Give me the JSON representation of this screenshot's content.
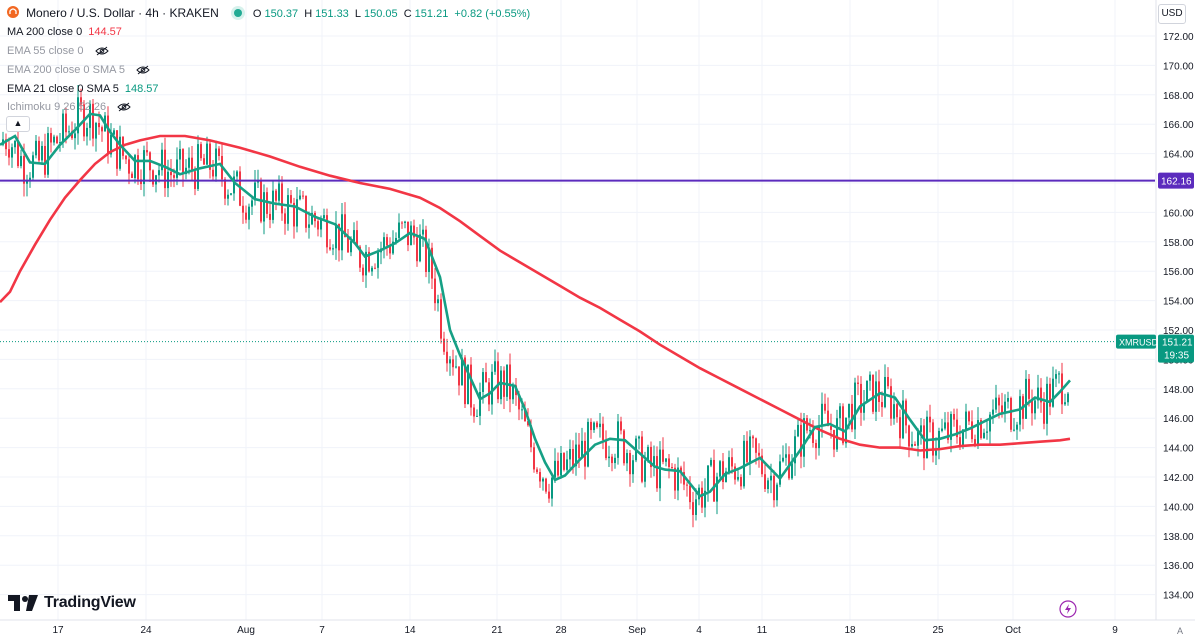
{
  "header": {
    "symbol_title": "Monero / U.S. Dollar · 4h · KRAKEN",
    "ohlc": {
      "o_label": "O",
      "o": "150.37",
      "h_label": "H",
      "h": "151.33",
      "l_label": "L",
      "l": "150.05",
      "c_label": "C",
      "c": "151.21",
      "change": "+0.82 (+0.55%)"
    },
    "currency_button": "USD"
  },
  "indicators": [
    {
      "label": "MA 200 close 0",
      "value": "144.57",
      "hidden": false
    },
    {
      "label": "EMA 55 close 0",
      "value": "",
      "hidden": true
    },
    {
      "label": "EMA 200 close 0 SMA 5",
      "value": "",
      "hidden": true
    },
    {
      "label": "EMA 21 close 0 SMA 5",
      "value": "148.57",
      "hidden": false
    },
    {
      "label": "Ichimoku 9 26 52 26",
      "value": "",
      "hidden": true
    }
  ],
  "branding": {
    "logo_text": "TradingView"
  },
  "auto_label": "A",
  "colors": {
    "up": "#089981",
    "down": "#f23645",
    "ma200": "#f23645",
    "ema21": "#16a085",
    "hline": "#5b2bbd",
    "grid": "#f0f3fa"
  },
  "chart_data": {
    "type": "candlestick",
    "symbol": "XMRUSD",
    "interval": "4h",
    "exchange": "KRAKEN",
    "ylim": [
      133,
      173
    ],
    "y_ticks": [
      "172.00",
      "170.00",
      "168.00",
      "166.00",
      "164.00",
      "162.00",
      "160.00",
      "158.00",
      "156.00",
      "154.00",
      "152.00",
      "150.00",
      "148.00",
      "146.00",
      "144.00",
      "142.00",
      "140.00",
      "138.00",
      "136.00",
      "134.00"
    ],
    "x_ticks": [
      "17",
      "24",
      "Aug",
      "7",
      "14",
      "21",
      "28",
      "Sep",
      "4",
      "11",
      "18",
      "25",
      "Oct",
      "9"
    ],
    "horizontal_line": {
      "price": 162.16,
      "label": "162.16"
    },
    "last_price": {
      "label": "XMRUSD",
      "price": "151.21",
      "countdown": "19:35"
    },
    "ma200": [
      [
        0,
        153.9
      ],
      [
        10,
        154.6
      ],
      [
        20,
        156.0
      ],
      [
        35,
        157.8
      ],
      [
        50,
        159.5
      ],
      [
        65,
        161.0
      ],
      [
        80,
        162.2
      ],
      [
        95,
        163.3
      ],
      [
        110,
        164.1
      ],
      [
        125,
        164.6
      ],
      [
        140,
        164.9
      ],
      [
        160,
        165.2
      ],
      [
        185,
        165.2
      ],
      [
        210,
        164.9
      ],
      [
        240,
        164.4
      ],
      [
        270,
        163.8
      ],
      [
        300,
        163.1
      ],
      [
        330,
        162.5
      ],
      [
        360,
        162.0
      ],
      [
        390,
        161.6
      ],
      [
        420,
        161.0
      ],
      [
        440,
        160.3
      ],
      [
        460,
        159.4
      ],
      [
        480,
        158.4
      ],
      [
        500,
        157.4
      ],
      [
        520,
        156.6
      ],
      [
        540,
        155.8
      ],
      [
        560,
        155.0
      ],
      [
        580,
        154.2
      ],
      [
        600,
        153.5
      ],
      [
        620,
        152.7
      ],
      [
        640,
        151.9
      ],
      [
        660,
        151.0
      ],
      [
        680,
        150.2
      ],
      [
        700,
        149.4
      ],
      [
        720,
        148.7
      ],
      [
        740,
        148.0
      ],
      [
        760,
        147.3
      ],
      [
        780,
        146.6
      ],
      [
        800,
        145.9
      ],
      [
        820,
        145.2
      ],
      [
        840,
        144.6
      ],
      [
        860,
        144.2
      ],
      [
        880,
        144.0
      ],
      [
        900,
        144.0
      ],
      [
        920,
        143.8
      ],
      [
        940,
        143.9
      ],
      [
        960,
        144.1
      ],
      [
        980,
        144.2
      ],
      [
        1000,
        144.2
      ],
      [
        1020,
        144.3
      ],
      [
        1040,
        144.4
      ],
      [
        1060,
        144.5
      ],
      [
        1070,
        144.6
      ]
    ],
    "ema21": [
      [
        0,
        164.6
      ],
      [
        15,
        165.2
      ],
      [
        30,
        163.4
      ],
      [
        45,
        163.3
      ],
      [
        60,
        164.6
      ],
      [
        75,
        165.6
      ],
      [
        90,
        166.7
      ],
      [
        100,
        166.6
      ],
      [
        110,
        165.5
      ],
      [
        120,
        164.6
      ],
      [
        135,
        163.5
      ],
      [
        150,
        163.5
      ],
      [
        165,
        163.1
      ],
      [
        180,
        162.6
      ],
      [
        200,
        163.0
      ],
      [
        220,
        163.3
      ],
      [
        235,
        162.0
      ],
      [
        255,
        160.9
      ],
      [
        275,
        160.6
      ],
      [
        295,
        160.4
      ],
      [
        315,
        159.7
      ],
      [
        335,
        159.2
      ],
      [
        355,
        157.9
      ],
      [
        365,
        157.0
      ],
      [
        380,
        157.4
      ],
      [
        395,
        157.9
      ],
      [
        410,
        158.6
      ],
      [
        425,
        158.2
      ],
      [
        440,
        155.6
      ],
      [
        450,
        152.0
      ],
      [
        460,
        150.3
      ],
      [
        470,
        148.8
      ],
      [
        480,
        147.3
      ],
      [
        490,
        147.7
      ],
      [
        500,
        148.4
      ],
      [
        515,
        148.2
      ],
      [
        525,
        146.6
      ],
      [
        535,
        144.6
      ],
      [
        545,
        143.0
      ],
      [
        555,
        141.8
      ],
      [
        565,
        142.1
      ],
      [
        580,
        143.2
      ],
      [
        595,
        144.2
      ],
      [
        610,
        144.6
      ],
      [
        625,
        144.5
      ],
      [
        640,
        143.6
      ],
      [
        655,
        142.7
      ],
      [
        665,
        142.5
      ],
      [
        680,
        142.4
      ],
      [
        700,
        140.7
      ],
      [
        710,
        141.0
      ],
      [
        725,
        142.2
      ],
      [
        740,
        142.6
      ],
      [
        760,
        143.3
      ],
      [
        780,
        141.9
      ],
      [
        800,
        143.8
      ],
      [
        815,
        145.4
      ],
      [
        830,
        145.6
      ],
      [
        845,
        145.1
      ],
      [
        860,
        146.8
      ],
      [
        880,
        147.7
      ],
      [
        895,
        147.4
      ],
      [
        910,
        145.9
      ],
      [
        925,
        144.5
      ],
      [
        940,
        144.6
      ],
      [
        955,
        144.9
      ],
      [
        970,
        145.3
      ],
      [
        985,
        145.8
      ],
      [
        1000,
        146.3
      ],
      [
        1020,
        146.6
      ],
      [
        1035,
        147.4
      ],
      [
        1050,
        147.1
      ],
      [
        1060,
        147.8
      ],
      [
        1070,
        148.57
      ]
    ],
    "candles_source": "daily_path_with_wicks"
  }
}
